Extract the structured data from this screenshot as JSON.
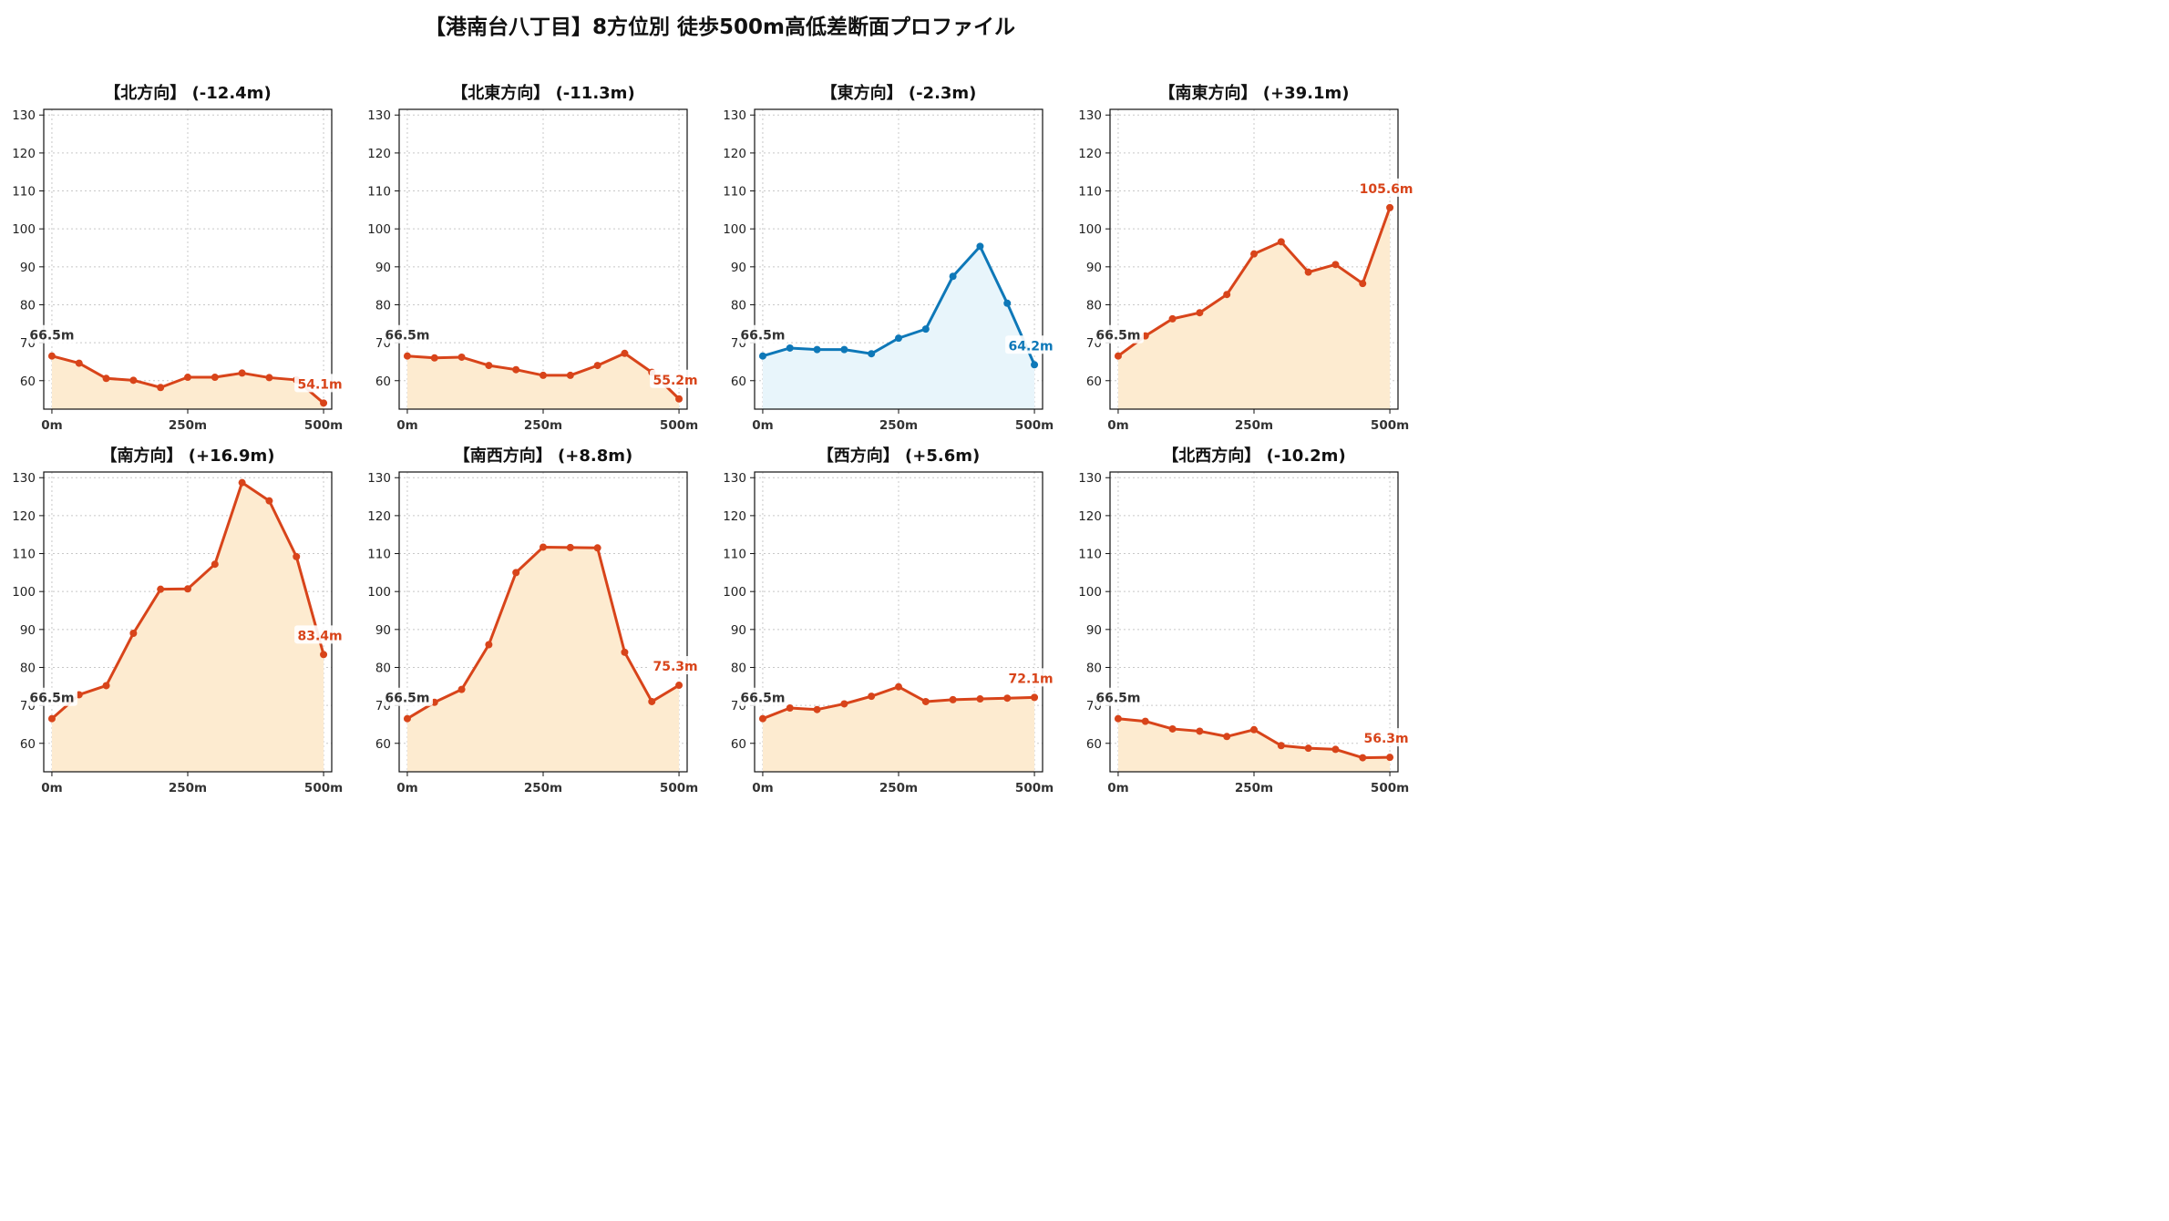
{
  "title": "【港南台八丁目】8方位別 徒歩500m高低差断面プロファイル",
  "colors": {
    "down": "#d8441a",
    "up": "#0e78b8",
    "fill_down": "#fdebd0",
    "fill_up": "#e8f5fb"
  },
  "chart_data": [
    {
      "type": "area",
      "title": "【北方向】 (-12.4m)",
      "color": "down",
      "x": [
        0,
        50,
        100,
        150,
        200,
        250,
        300,
        350,
        400,
        450,
        500
      ],
      "y": [
        66.5,
        64.6,
        60.6,
        60.1,
        58.2,
        60.9,
        60.9,
        62.0,
        60.8,
        60.2,
        54.1
      ],
      "start_label": "66.5m",
      "end_label": "54.1m",
      "yticks": [
        60,
        70,
        80,
        90,
        100,
        110,
        120,
        130
      ],
      "ytick_labels": [
        "60",
        "70",
        "80",
        "90",
        "100",
        "110",
        "120",
        "130"
      ],
      "xticks": [
        0,
        250,
        500
      ],
      "xtick_labels": [
        "0m",
        "250m",
        "500m"
      ],
      "ylim": [
        52.5,
        131.5
      ],
      "xlim": [
        -15,
        515
      ],
      "grid": true
    },
    {
      "type": "area",
      "title": "【北東方向】 (-11.3m)",
      "color": "down",
      "x": [
        0,
        50,
        100,
        150,
        200,
        250,
        300,
        350,
        400,
        450,
        500
      ],
      "y": [
        66.5,
        66.0,
        66.2,
        64.0,
        62.9,
        61.4,
        61.4,
        64.0,
        67.2,
        62.2,
        55.2
      ],
      "start_label": "66.5m",
      "end_label": "55.2m",
      "yticks": [
        60,
        70,
        80,
        90,
        100,
        110,
        120,
        130
      ],
      "ytick_labels": [
        "60",
        "70",
        "80",
        "90",
        "100",
        "110",
        "120",
        "130"
      ],
      "xticks": [
        0,
        250,
        500
      ],
      "xtick_labels": [
        "0m",
        "250m",
        "500m"
      ],
      "ylim": [
        52.5,
        131.5
      ],
      "xlim": [
        -15,
        515
      ],
      "grid": true
    },
    {
      "type": "area",
      "title": "【東方向】 (-2.3m)",
      "color": "up",
      "x": [
        0,
        50,
        100,
        150,
        200,
        250,
        300,
        350,
        400,
        450,
        500
      ],
      "y": [
        66.5,
        68.6,
        68.2,
        68.2,
        67.1,
        71.2,
        73.6,
        87.5,
        95.4,
        80.4,
        64.2
      ],
      "start_label": "66.5m",
      "end_label": "64.2m",
      "yticks": [
        60,
        70,
        80,
        90,
        100,
        110,
        120,
        130
      ],
      "ytick_labels": [
        "60",
        "70",
        "80",
        "90",
        "100",
        "110",
        "120",
        "130"
      ],
      "xticks": [
        0,
        250,
        500
      ],
      "xtick_labels": [
        "0m",
        "250m",
        "500m"
      ],
      "ylim": [
        52.5,
        131.5
      ],
      "xlim": [
        -15,
        515
      ],
      "grid": true
    },
    {
      "type": "area",
      "title": "【南東方向】 (+39.1m)",
      "color": "down",
      "x": [
        0,
        50,
        100,
        150,
        200,
        250,
        300,
        350,
        400,
        450,
        500
      ],
      "y": [
        66.5,
        71.8,
        76.3,
        77.9,
        82.7,
        93.4,
        96.6,
        88.6,
        90.6,
        85.6,
        105.6
      ],
      "start_label": "66.5m",
      "end_label": "105.6m",
      "yticks": [
        60,
        70,
        80,
        90,
        100,
        110,
        120,
        130
      ],
      "ytick_labels": [
        "60",
        "70",
        "80",
        "90",
        "100",
        "110",
        "120",
        "130"
      ],
      "xticks": [
        0,
        250,
        500
      ],
      "xtick_labels": [
        "0m",
        "250m",
        "500m"
      ],
      "ylim": [
        52.5,
        131.5
      ],
      "xlim": [
        -15,
        515
      ],
      "grid": true
    },
    {
      "type": "area",
      "title": "【南方向】 (+16.9m)",
      "color": "down",
      "x": [
        0,
        50,
        100,
        150,
        200,
        250,
        300,
        350,
        400,
        450,
        500
      ],
      "y": [
        66.5,
        72.8,
        75.2,
        89.0,
        100.6,
        100.7,
        107.2,
        128.7,
        123.9,
        109.2,
        83.4
      ],
      "start_label": "66.5m",
      "end_label": "83.4m",
      "yticks": [
        60,
        70,
        80,
        90,
        100,
        110,
        120,
        130
      ],
      "ytick_labels": [
        "60",
        "70",
        "80",
        "90",
        "100",
        "110",
        "120",
        "130"
      ],
      "xticks": [
        0,
        250,
        500
      ],
      "xtick_labels": [
        "0m",
        "250m",
        "500m"
      ],
      "ylim": [
        52.5,
        131.5
      ],
      "xlim": [
        -15,
        515
      ],
      "grid": true
    },
    {
      "type": "area",
      "title": "【南西方向】 (+8.8m)",
      "color": "down",
      "x": [
        0,
        50,
        100,
        150,
        200,
        250,
        300,
        350,
        400,
        450,
        500
      ],
      "y": [
        66.5,
        70.8,
        74.2,
        86.0,
        105.0,
        111.7,
        111.6,
        111.5,
        84.0,
        71.0,
        75.3
      ],
      "start_label": "66.5m",
      "end_label": "75.3m",
      "yticks": [
        60,
        70,
        80,
        90,
        100,
        110,
        120,
        130
      ],
      "ytick_labels": [
        "60",
        "70",
        "80",
        "90",
        "100",
        "110",
        "120",
        "130"
      ],
      "xticks": [
        0,
        250,
        500
      ],
      "xtick_labels": [
        "0m",
        "250m",
        "500m"
      ],
      "ylim": [
        52.5,
        131.5
      ],
      "xlim": [
        -15,
        515
      ],
      "grid": true
    },
    {
      "type": "area",
      "title": "【西方向】 (+5.6m)",
      "color": "down",
      "x": [
        0,
        50,
        100,
        150,
        200,
        250,
        300,
        350,
        400,
        450,
        500
      ],
      "y": [
        66.5,
        69.3,
        68.9,
        70.4,
        72.4,
        74.9,
        71.0,
        71.5,
        71.7,
        71.9,
        72.1
      ],
      "start_label": "66.5m",
      "end_label": "72.1m",
      "yticks": [
        60,
        70,
        80,
        90,
        100,
        110,
        120,
        130
      ],
      "ytick_labels": [
        "60",
        "70",
        "80",
        "90",
        "100",
        "110",
        "120",
        "130"
      ],
      "xticks": [
        0,
        250,
        500
      ],
      "xtick_labels": [
        "0m",
        "250m",
        "500m"
      ],
      "ylim": [
        52.5,
        131.5
      ],
      "xlim": [
        -15,
        515
      ],
      "grid": true
    },
    {
      "type": "area",
      "title": "【北西方向】 (-10.2m)",
      "color": "down",
      "x": [
        0,
        50,
        100,
        150,
        200,
        250,
        300,
        350,
        400,
        450,
        500
      ],
      "y": [
        66.5,
        65.8,
        63.8,
        63.2,
        61.8,
        63.6,
        59.4,
        58.7,
        58.4,
        56.2,
        56.3
      ],
      "start_label": "66.5m",
      "end_label": "56.3m",
      "yticks": [
        60,
        70,
        80,
        90,
        100,
        110,
        120,
        130
      ],
      "ytick_labels": [
        "60",
        "70",
        "80",
        "90",
        "100",
        "110",
        "120",
        "130"
      ],
      "xticks": [
        0,
        250,
        500
      ],
      "xtick_labels": [
        "0m",
        "250m",
        "500m"
      ],
      "ylim": [
        52.5,
        131.5
      ],
      "xlim": [
        -15,
        515
      ],
      "grid": true
    }
  ]
}
